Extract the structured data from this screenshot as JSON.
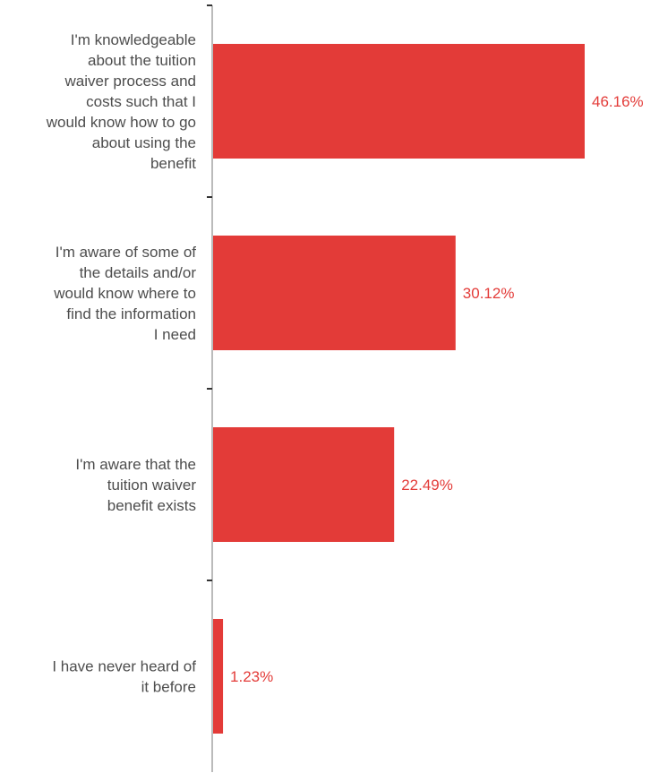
{
  "chart_data": {
    "type": "bar",
    "orientation": "horizontal",
    "categories": [
      "I'm knowledgeable about the tuition waiver process and costs such that I would know how to go about using the benefit",
      "I'm aware of some of the details and/or would know where to find the information I need",
      "I'm aware that the tuition waiver benefit exists",
      "I have never heard of it before"
    ],
    "category_lines": [
      [
        "I'm knowledgeable",
        "about the tuition",
        "waiver process and",
        "costs such that I",
        "would know how to go",
        "about using the",
        "benefit"
      ],
      [
        "I'm aware of some of",
        "the details and/or",
        "would know where to",
        "find the information",
        "I need"
      ],
      [
        "I'm aware that the",
        "tuition waiver",
        "benefit exists"
      ],
      [
        "I have never heard of",
        "it before"
      ]
    ],
    "values": [
      46.16,
      30.12,
      22.49,
      1.23
    ],
    "value_labels": [
      "46.16%",
      "30.12%",
      "22.49%",
      "1.23%"
    ],
    "xlim": [
      0,
      55
    ],
    "title": "",
    "xlabel": "",
    "ylabel": "",
    "grid": false,
    "legend": "none",
    "colors": {
      "bar": "#e33b38",
      "value_label": "#e33b38",
      "axis": "#777777",
      "category_label": "#4d4d4d"
    }
  }
}
